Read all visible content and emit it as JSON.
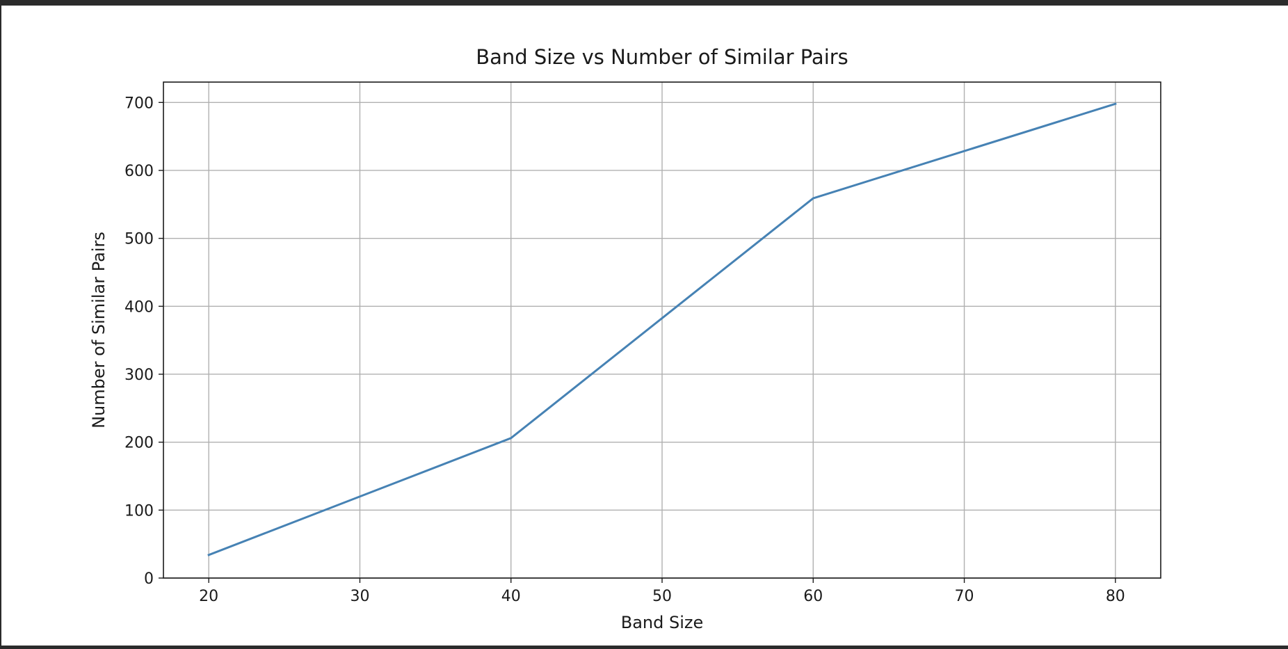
{
  "chart_data": {
    "type": "line",
    "title": "Band Size vs Number of Similar Pairs",
    "xlabel": "Band Size",
    "ylabel": "Number of Similar Pairs",
    "xlim": [
      17,
      83
    ],
    "ylim": [
      0,
      730
    ],
    "xticks": [
      20,
      30,
      40,
      50,
      60,
      70,
      80
    ],
    "yticks": [
      0,
      100,
      200,
      300,
      400,
      500,
      600,
      700
    ],
    "grid": true,
    "line_color": "#4682b4",
    "series": [
      {
        "x": [
          20,
          40,
          60,
          80
        ],
        "y": [
          34,
          206,
          559,
          698
        ]
      }
    ]
  }
}
